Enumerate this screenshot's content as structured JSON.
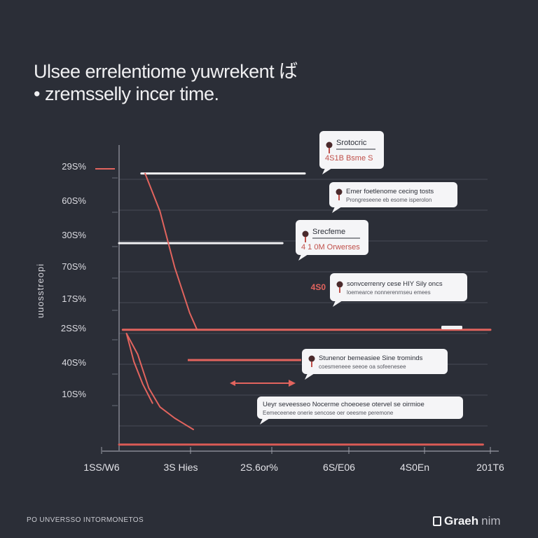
{
  "title_lines": [
    "Ulsee errelentiome yuwrekent ば",
    "• zremsselly incer time."
  ],
  "chart_data": {
    "type": "line",
    "title": "Ulsee errelentiome yuwrekent ば zremsselly incer time.",
    "ylabel": "uuosstreopi",
    "xlabel": "",
    "y_tick_labels": [
      "29S%",
      "60S%",
      "30S%",
      "70S%",
      "17S%",
      "2SS%",
      "40S%",
      "10S%"
    ],
    "x_tick_labels": [
      "1SS/W6",
      "3S Hies",
      "2S.6or%",
      "6S/E06",
      "4S0En",
      "201T6"
    ],
    "ylim": [
      0,
      8
    ],
    "xlim": [
      0,
      5
    ],
    "grid": true,
    "series": [
      {
        "color": "#e2645e",
        "x": [
          0.35,
          0.55,
          0.75,
          0.95,
          1.05,
          1.2
        ],
        "y": [
          7.3,
          6.3,
          4.8,
          3.6,
          3.15,
          3.15
        ]
      },
      {
        "color": "#e2645e",
        "x": [
          0.1,
          0.2,
          0.32,
          0.45
        ],
        "y": [
          3.05,
          2.3,
          1.7,
          1.2
        ]
      },
      {
        "color": "#e2645e",
        "x": [
          0.1,
          0.25,
          0.4,
          0.55,
          0.75,
          1.0
        ],
        "y": [
          3.05,
          2.5,
          1.6,
          1.1,
          0.8,
          0.5
        ]
      }
    ],
    "reference_lines": [
      {
        "y": 7.3,
        "x_from": 0.3,
        "x_to": 2.5,
        "color": "#f1f1f3"
      },
      {
        "y": 5.45,
        "x_from": 0.0,
        "x_to": 2.2,
        "color": "#f1f1f3"
      },
      {
        "y": 3.15,
        "x_from": 0.05,
        "x_to": 5.0,
        "color": "#e2645e"
      },
      {
        "y": 0.1,
        "x_from": 0.0,
        "x_to": 4.9,
        "color": "#d85a55"
      }
    ],
    "annotations": [
      {
        "title": "Srotocric",
        "subtitle": "4S1B Bsme S",
        "icon": "pin-icon"
      },
      {
        "title": "Emer foetlenome cecing tosts",
        "subtitle": "Prongreseene eb esome isperolon",
        "icon": "pin-icon"
      },
      {
        "title": "Srecfeme",
        "subtitle": "4 1 0M Orwerses",
        "icon": "pin-icon"
      },
      {
        "title": "sonvcerrenry cese HIY Sily oncs",
        "subtitle": "loemearce nonnerenrnseu emees",
        "icon": "pin-icon",
        "side_label": "4S0"
      },
      {
        "title": "Stunenor bemeasiee Sine trominds",
        "subtitle": "coesmeneee seeoe oa sofeenesee",
        "icon": "pin-icon"
      },
      {
        "title": "Ueyr seveesseo Nocerme choeoese otervel se oirmioe",
        "subtitle": "Eemeceenee onerie sencose oer oeesme peremone"
      }
    ]
  },
  "footer": {
    "left": "PO UNVERSSO INTORMONETOS",
    "brand": "Graeh",
    "brand_suffix": "nim"
  }
}
